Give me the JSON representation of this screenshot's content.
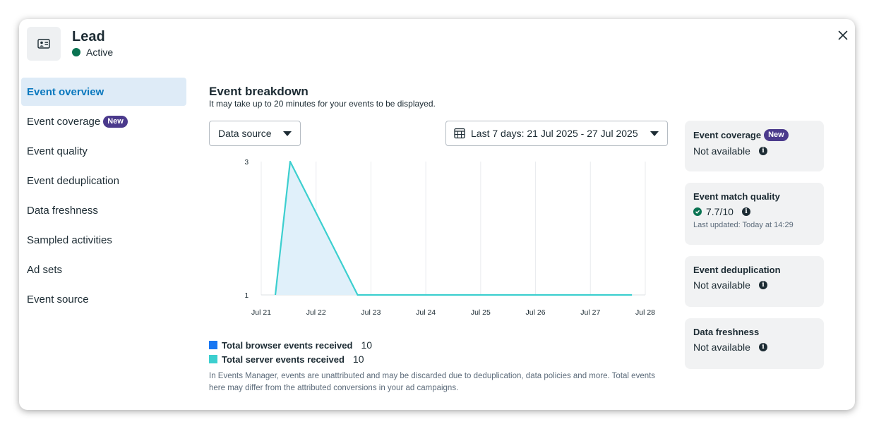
{
  "header": {
    "title": "Lead",
    "status": "Active"
  },
  "nav": {
    "items": [
      {
        "label": "Event overview",
        "active": true
      },
      {
        "label": "Event coverage",
        "badge": "New"
      },
      {
        "label": "Event quality"
      },
      {
        "label": "Event deduplication"
      },
      {
        "label": "Data freshness"
      },
      {
        "label": "Sampled activities"
      },
      {
        "label": "Ad sets"
      },
      {
        "label": "Event source"
      }
    ]
  },
  "main": {
    "title": "Event breakdown",
    "subtitle": "It may take up to 20 minutes for your events to be displayed.",
    "data_source_label": "Data source",
    "date_range_label": "Last 7 days: 21 Jul 2025 - 27 Jul 2025",
    "legend": [
      {
        "label": "Total browser events received",
        "value": "10",
        "color": "#1877f2"
      },
      {
        "label": "Total server events received",
        "value": "10",
        "color": "#3ccfcf"
      }
    ],
    "note": "In Events Manager, events are unattributed and may be discarded due to deduplication, data policies and more. Total events here may differ from the attributed conversions in your ad campaigns."
  },
  "chart_data": {
    "type": "area",
    "x": [
      "Jul 21",
      "Jul 22",
      "Jul 23",
      "Jul 24",
      "Jul 25",
      "Jul 26",
      "Jul 27",
      "Jul 28"
    ],
    "y_ticks": [
      "3",
      "1"
    ],
    "ylim": [
      1,
      3
    ],
    "series": [
      {
        "name": "Total server events received",
        "color": "#3ccfcf",
        "points": [
          [
            0.0,
            1
          ],
          [
            0.27,
            3
          ],
          [
            1.5,
            1
          ],
          [
            2,
            1
          ],
          [
            3,
            1
          ],
          [
            4,
            1
          ],
          [
            5,
            1
          ],
          [
            6,
            1
          ],
          [
            6.5,
            1
          ]
        ]
      }
    ]
  },
  "cards": [
    {
      "title": "Event coverage",
      "badge": "New",
      "value": "Not available"
    },
    {
      "title": "Event match quality",
      "value": "7.7/10",
      "updated": "Last updated: Today at 14:29"
    },
    {
      "title": "Event deduplication",
      "value": "Not available"
    },
    {
      "title": "Data freshness",
      "value": "Not available"
    }
  ],
  "colors": {
    "accent": "#0a78be",
    "active_bg": "#deebf7",
    "badge": "#4b3a8c",
    "status_green": "#0a7352",
    "area_fill": "#e0f0fa"
  }
}
